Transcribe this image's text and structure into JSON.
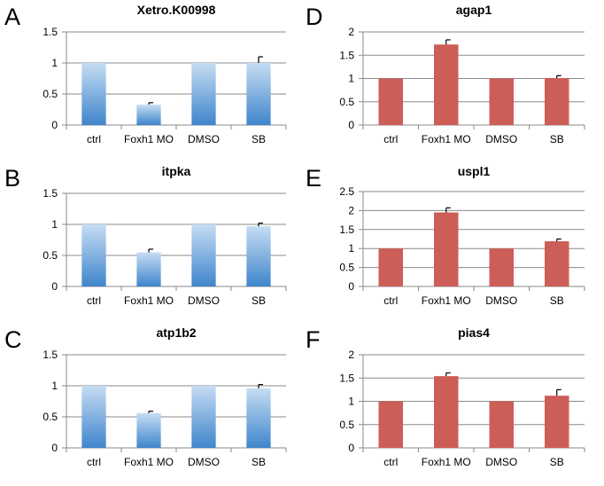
{
  "colors": {
    "blue_top": "#c6ddf3",
    "blue_bottom": "#3f85cc",
    "red": "#cd5d57",
    "grid": "#8a8a8a"
  },
  "chart_data": [
    {
      "panel": "A",
      "type": "bar",
      "title": "Xetro.K00998",
      "style": "blue",
      "categories": [
        "ctrl",
        "Foxh1 MO",
        "DMSO",
        "SB"
      ],
      "values": [
        1,
        0.33,
        1,
        1.0
      ],
      "errors": [
        0,
        0.03,
        0,
        0.1
      ],
      "ylim": [
        0,
        1.5
      ],
      "yticks": [
        "0",
        "0.5",
        "1",
        "1.5"
      ],
      "grid": true
    },
    {
      "panel": "B",
      "type": "bar",
      "title": "itpka",
      "style": "blue",
      "categories": [
        "ctrl",
        "Foxh1 MO",
        "DMSO",
        "SB"
      ],
      "values": [
        1,
        0.55,
        1,
        0.97
      ],
      "errors": [
        0,
        0.05,
        0,
        0.05
      ],
      "ylim": [
        0,
        1.5
      ],
      "yticks": [
        "0",
        "0.5",
        "1",
        "1.5"
      ],
      "grid": true
    },
    {
      "panel": "C",
      "type": "bar",
      "title": "atp1b2",
      "style": "blue",
      "categories": [
        "ctrl",
        "Foxh1 MO",
        "DMSO",
        "SB"
      ],
      "values": [
        1,
        0.56,
        1,
        0.96
      ],
      "errors": [
        0,
        0.03,
        0,
        0.06
      ],
      "ylim": [
        0,
        1.5
      ],
      "yticks": [
        "0",
        "0.5",
        "1",
        "1.5"
      ],
      "grid": true
    },
    {
      "panel": "D",
      "type": "bar",
      "title": "agap1",
      "style": "red",
      "categories": [
        "ctrl",
        "Foxh1 MO",
        "DMSO",
        "SB"
      ],
      "values": [
        1,
        1.73,
        1,
        1.01
      ],
      "errors": [
        0,
        0.1,
        0,
        0.05
      ],
      "ylim": [
        0,
        2
      ],
      "yticks": [
        "0",
        "0.5",
        "1",
        "1.5",
        "2"
      ],
      "grid": true
    },
    {
      "panel": "E",
      "type": "bar",
      "title": "uspl1",
      "style": "red",
      "categories": [
        "ctrl",
        "Foxh1 MO",
        "DMSO",
        "SB"
      ],
      "values": [
        1,
        1.95,
        1,
        1.19
      ],
      "errors": [
        0,
        0.12,
        0,
        0.06
      ],
      "ylim": [
        0,
        2.5
      ],
      "yticks": [
        "0",
        "0.5",
        "1",
        "1.5",
        "2",
        "2.5"
      ],
      "grid": true
    },
    {
      "panel": "F",
      "type": "bar",
      "title": "pias4",
      "style": "red",
      "categories": [
        "ctrl",
        "Foxh1 MO",
        "DMSO",
        "SB"
      ],
      "values": [
        1,
        1.54,
        1,
        1.12
      ],
      "errors": [
        0,
        0.07,
        0,
        0.13
      ],
      "ylim": [
        0,
        2
      ],
      "yticks": [
        "0",
        "0.5",
        "1",
        "1.5",
        "2"
      ],
      "grid": true
    }
  ]
}
